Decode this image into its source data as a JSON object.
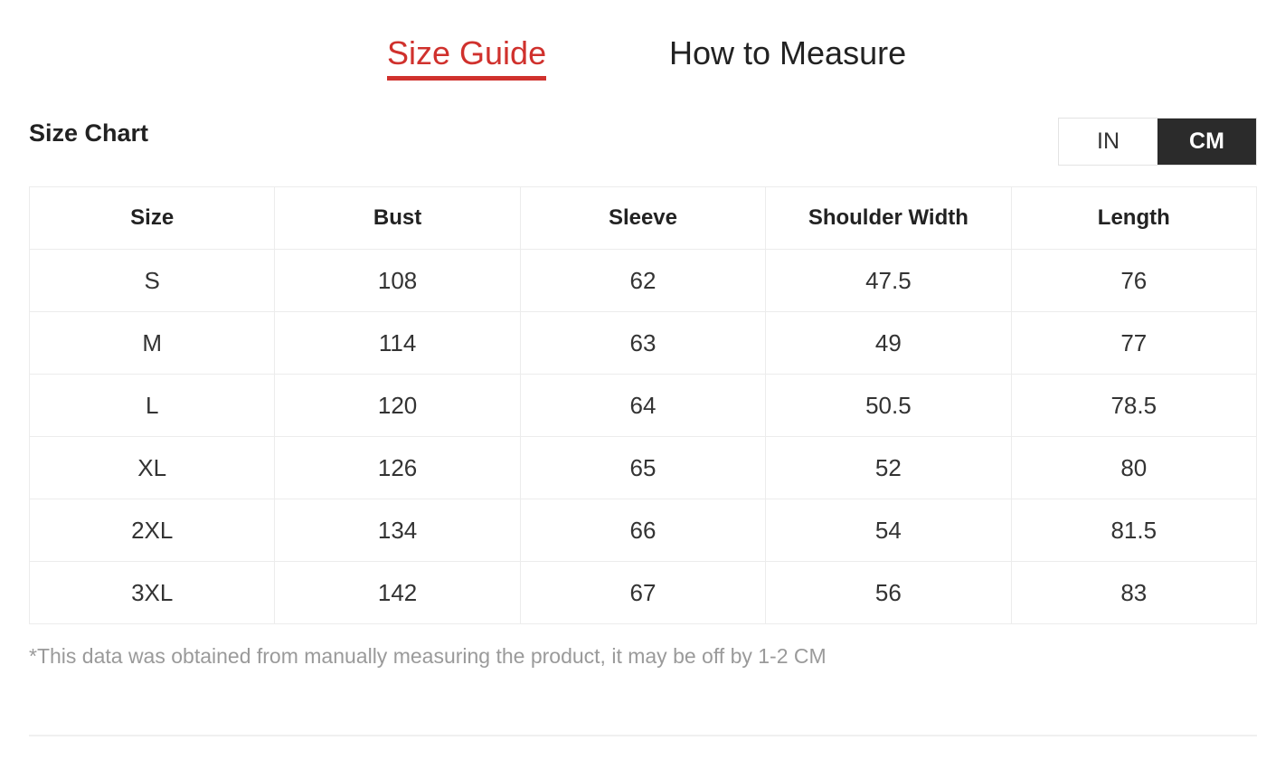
{
  "tabs": [
    {
      "label": "Size Guide",
      "active": true
    },
    {
      "label": "How to Measure",
      "active": false
    }
  ],
  "accent_color": "#d0312d",
  "section_title": "Size Chart",
  "unit_toggle": {
    "options": [
      "IN",
      "CM"
    ],
    "selected": "CM"
  },
  "table": {
    "headers": [
      "Size",
      "Bust",
      "Sleeve",
      "Shoulder Width",
      "Length"
    ],
    "rows": [
      [
        "S",
        "108",
        "62",
        "47.5",
        "76"
      ],
      [
        "M",
        "114",
        "63",
        "49",
        "77"
      ],
      [
        "L",
        "120",
        "64",
        "50.5",
        "78.5"
      ],
      [
        "XL",
        "126",
        "65",
        "52",
        "80"
      ],
      [
        "2XL",
        "134",
        "66",
        "54",
        "81.5"
      ],
      [
        "3XL",
        "142",
        "67",
        "56",
        "83"
      ]
    ]
  },
  "footnote": "*This data was obtained from manually measuring the product, it may be off by 1-2 CM"
}
